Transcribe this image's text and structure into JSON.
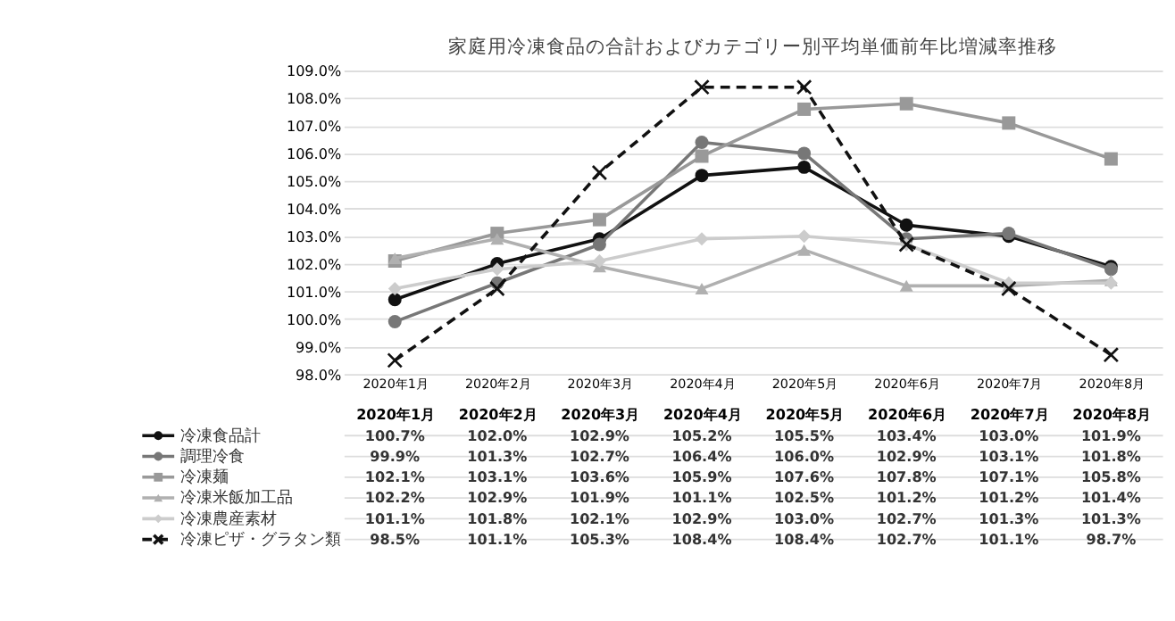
{
  "chart_data": {
    "type": "line",
    "title": "家庭用冷凍食品の合計およびカテゴリー別平均単価前年比増減率推移",
    "categories": [
      "2020年1月",
      "2020年2月",
      "2020年3月",
      "2020年4月",
      "2020年5月",
      "2020年6月",
      "2020年7月",
      "2020年8月"
    ],
    "ylim": [
      98,
      109
    ],
    "yticks": [
      {
        "value": 98,
        "label": "98.0%"
      },
      {
        "value": 99,
        "label": "99.0%"
      },
      {
        "value": 100,
        "label": "100.0%"
      },
      {
        "value": 101,
        "label": "101.0%"
      },
      {
        "value": 102,
        "label": "102.0%"
      },
      {
        "value": 103,
        "label": "103.0%"
      },
      {
        "value": 104,
        "label": "104.0%"
      },
      {
        "value": 105,
        "label": "105.0%"
      },
      {
        "value": 106,
        "label": "106.0%"
      },
      {
        "value": 107,
        "label": "107.0%"
      },
      {
        "value": 108,
        "label": "108.0%"
      },
      {
        "value": 109,
        "label": "109.0%"
      }
    ],
    "grid": "y",
    "legend": "bottom",
    "series": [
      {
        "name": "冷凍食品計",
        "color": "#111111",
        "marker": "circle",
        "line_style": "solid",
        "values": [
          100.7,
          102.0,
          102.9,
          105.2,
          105.5,
          103.4,
          103.0,
          101.9
        ],
        "value_labels": [
          "100.7%",
          "102.0%",
          "102.9%",
          "105.2%",
          "105.5%",
          "103.4%",
          "103.0%",
          "101.9%"
        ]
      },
      {
        "name": "調理冷食",
        "color": "#777777",
        "marker": "circle",
        "line_style": "solid",
        "values": [
          99.9,
          101.3,
          102.7,
          106.4,
          106.0,
          102.9,
          103.1,
          101.8
        ],
        "value_labels": [
          "99.9%",
          "101.3%",
          "102.7%",
          "106.4%",
          "106.0%",
          "102.9%",
          "103.1%",
          "101.8%"
        ]
      },
      {
        "name": "冷凍麺",
        "color": "#999999",
        "marker": "square",
        "line_style": "solid",
        "values": [
          102.1,
          103.1,
          103.6,
          105.9,
          107.6,
          107.8,
          107.1,
          105.8
        ],
        "value_labels": [
          "102.1%",
          "103.1%",
          "103.6%",
          "105.9%",
          "107.6%",
          "107.8%",
          "107.1%",
          "105.8%"
        ]
      },
      {
        "name": "冷凍米飯加工品",
        "color": "#b0b0b0",
        "marker": "triangle",
        "line_style": "solid",
        "values": [
          102.2,
          102.9,
          101.9,
          101.1,
          102.5,
          101.2,
          101.2,
          101.4
        ],
        "value_labels": [
          "102.2%",
          "102.9%",
          "101.9%",
          "101.1%",
          "102.5%",
          "101.2%",
          "101.2%",
          "101.4%"
        ]
      },
      {
        "name": "冷凍農産素材",
        "color": "#cccccc",
        "marker": "diamond",
        "line_style": "solid",
        "values": [
          101.1,
          101.8,
          102.1,
          102.9,
          103.0,
          102.7,
          101.3,
          101.3
        ],
        "value_labels": [
          "101.1%",
          "101.8%",
          "102.1%",
          "102.9%",
          "103.0%",
          "102.7%",
          "101.3%",
          "101.3%"
        ]
      },
      {
        "name": "冷凍ピザ・グラタン類",
        "color": "#111111",
        "marker": "cross",
        "line_style": "dashed",
        "values": [
          98.5,
          101.1,
          105.3,
          108.4,
          108.4,
          102.7,
          101.1,
          98.7
        ],
        "value_labels": [
          "98.5%",
          "101.1%",
          "105.3%",
          "108.4%",
          "108.4%",
          "102.7%",
          "101.1%",
          "98.7%"
        ]
      }
    ]
  }
}
